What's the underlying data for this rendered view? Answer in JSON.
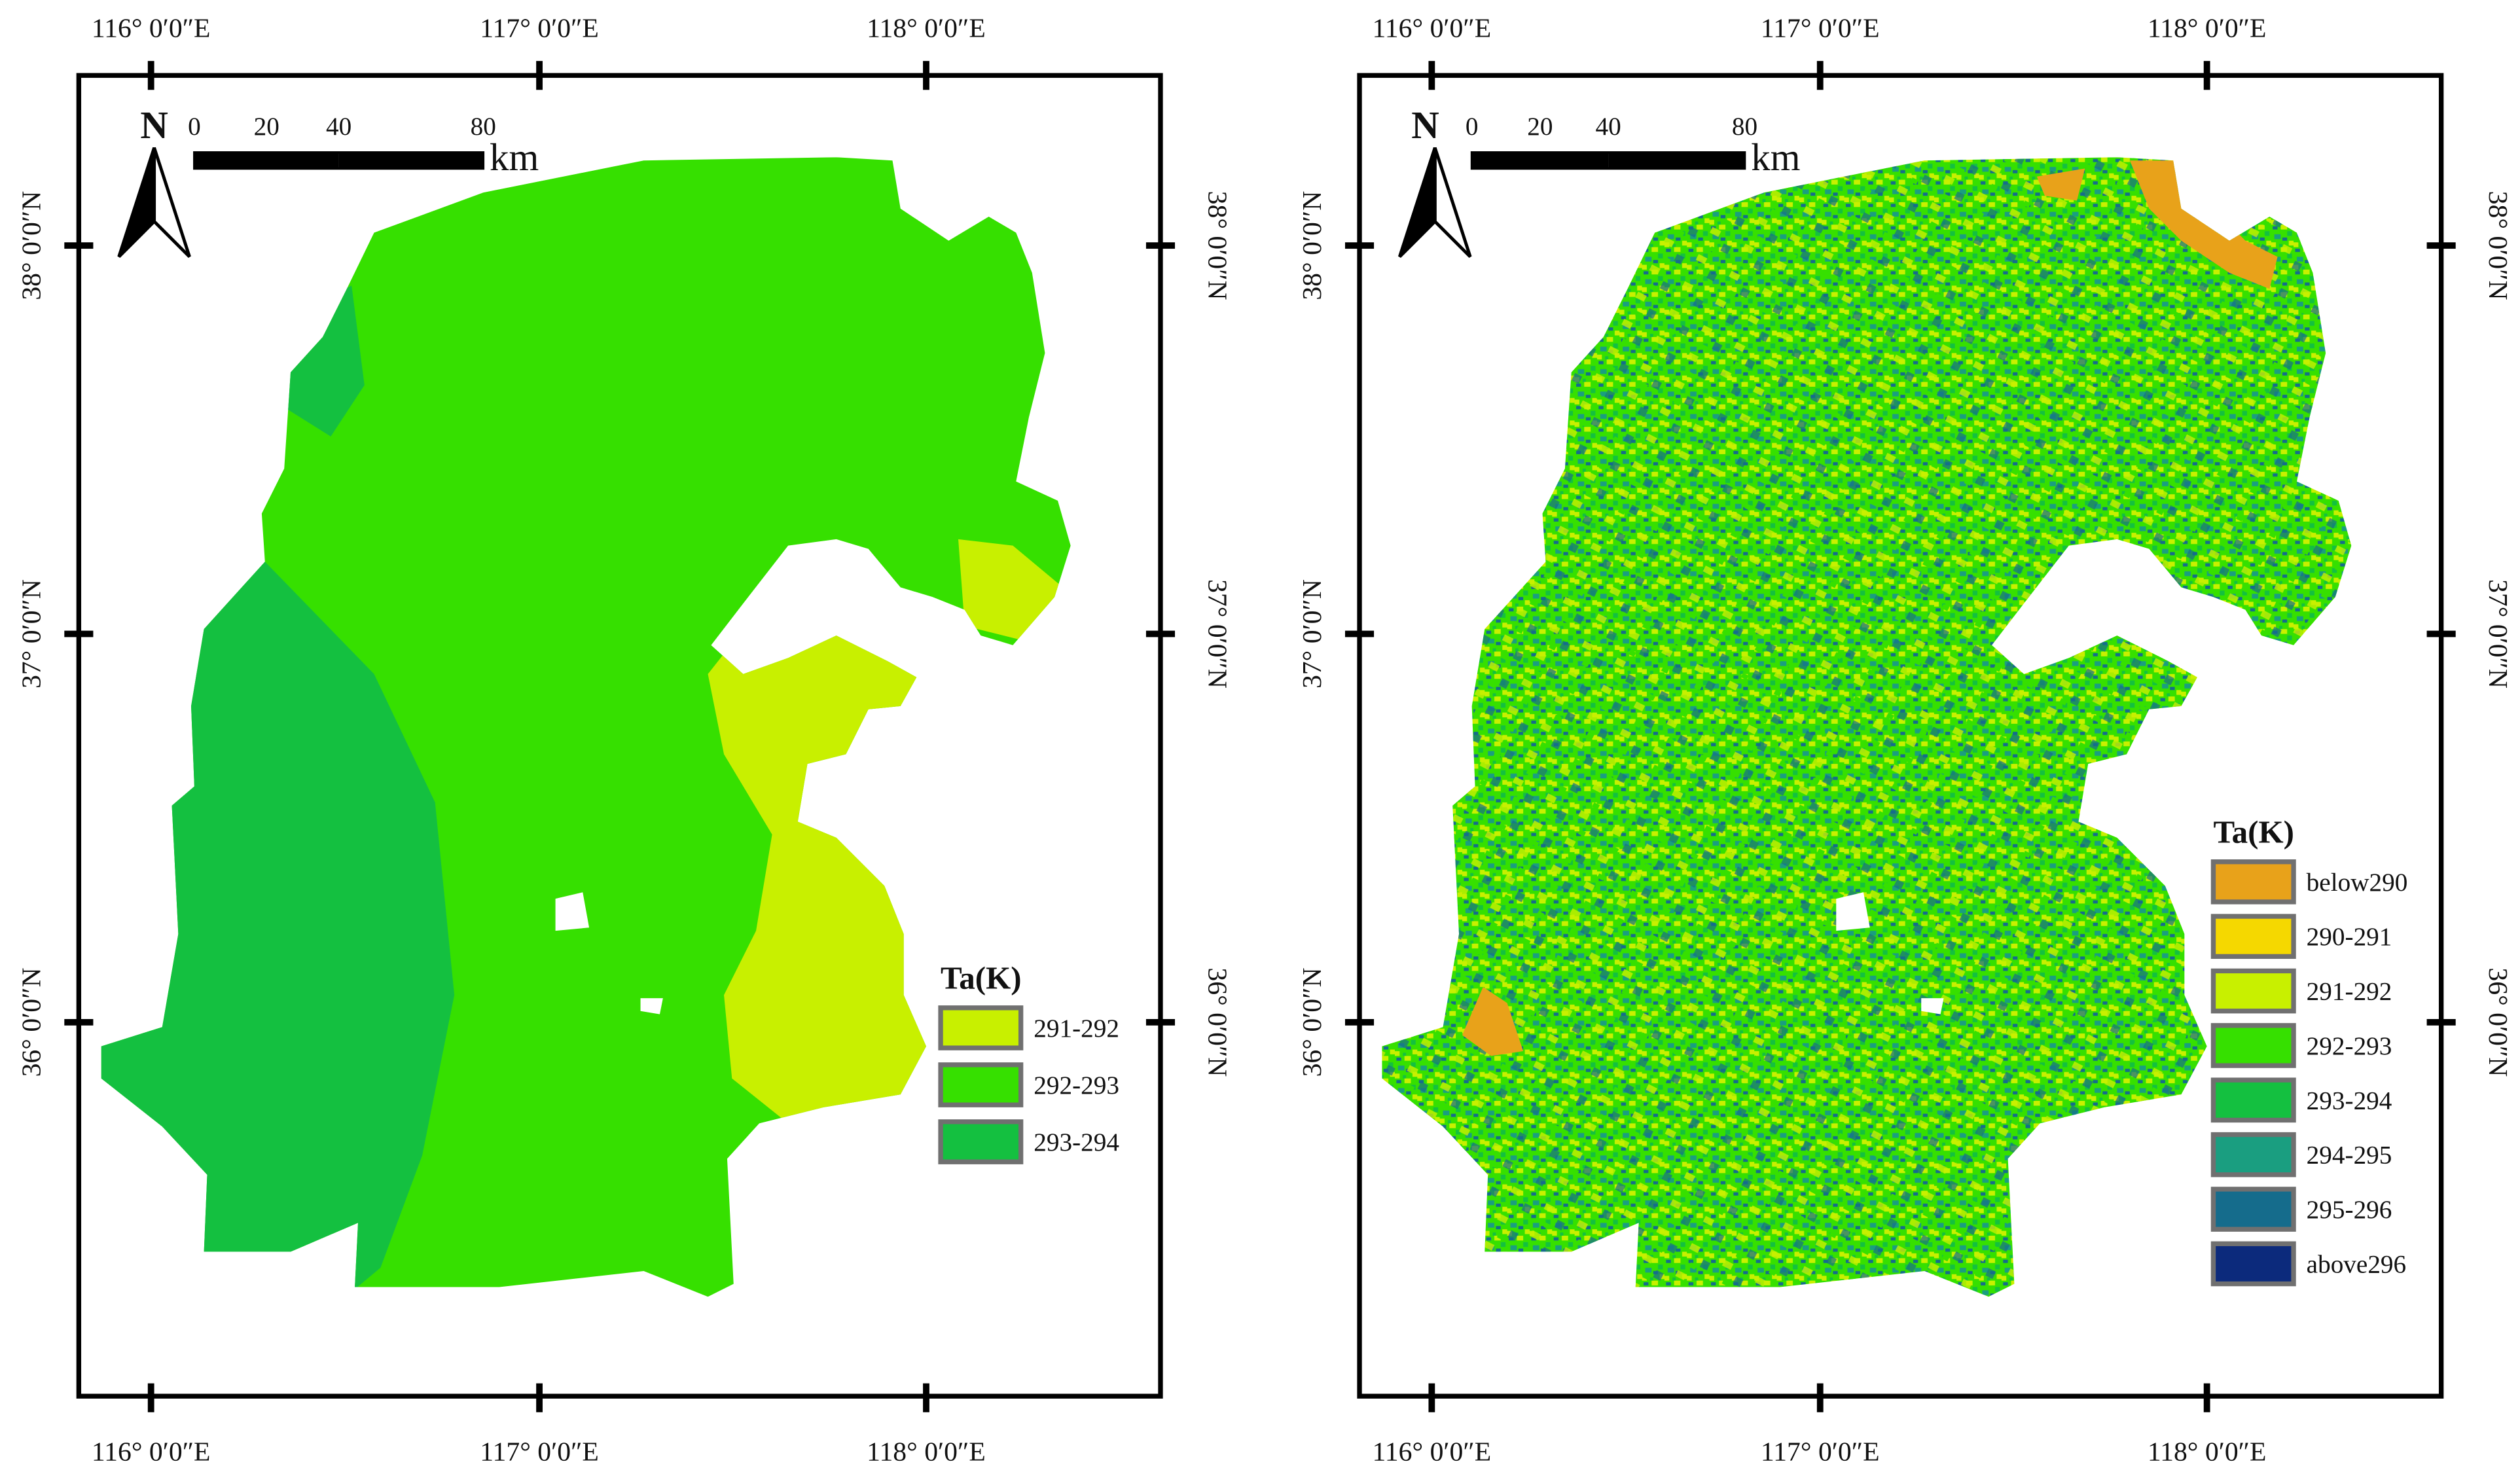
{
  "maps": [
    {
      "north": "N",
      "scale_bar": {
        "ticks": [
          0,
          20,
          40,
          80
        ],
        "unit": "km"
      },
      "lon_labels": [
        "116° 0′0″E",
        "117° 0′0″E",
        "118° 0′0″E"
      ],
      "lat_labels": [
        "38° 0′0″N",
        "37° 0′0″N",
        "36° 0′0″N"
      ],
      "legend": {
        "title": "Ta(K)",
        "items": [
          {
            "label": "291-292",
            "color": "#c8f000"
          },
          {
            "label": "292-293",
            "color": "#36e000"
          },
          {
            "label": "293-294",
            "color": "#14c040"
          }
        ]
      }
    },
    {
      "north": "N",
      "scale_bar": {
        "ticks": [
          0,
          20,
          40,
          80
        ],
        "unit": "km"
      },
      "lon_labels": [
        "116° 0′0″E",
        "117° 0′0″E",
        "118° 0′0″E"
      ],
      "lat_labels": [
        "38° 0′0″N",
        "37° 0′0″N",
        "36° 0′0″N"
      ],
      "legend": {
        "title": "Ta(K)",
        "items": [
          {
            "label": "below290",
            "color": "#e8a21a"
          },
          {
            "label": "290-291",
            "color": "#f5d800"
          },
          {
            "label": "291-292",
            "color": "#c8f000"
          },
          {
            "label": "292-293",
            "color": "#36e000"
          },
          {
            "label": "293-294",
            "color": "#14c040"
          },
          {
            "label": "294-295",
            "color": "#1a9e80"
          },
          {
            "label": "295-296",
            "color": "#156c8c"
          },
          {
            "label": "above296",
            "color": "#0c2a7c"
          }
        ]
      }
    }
  ]
}
